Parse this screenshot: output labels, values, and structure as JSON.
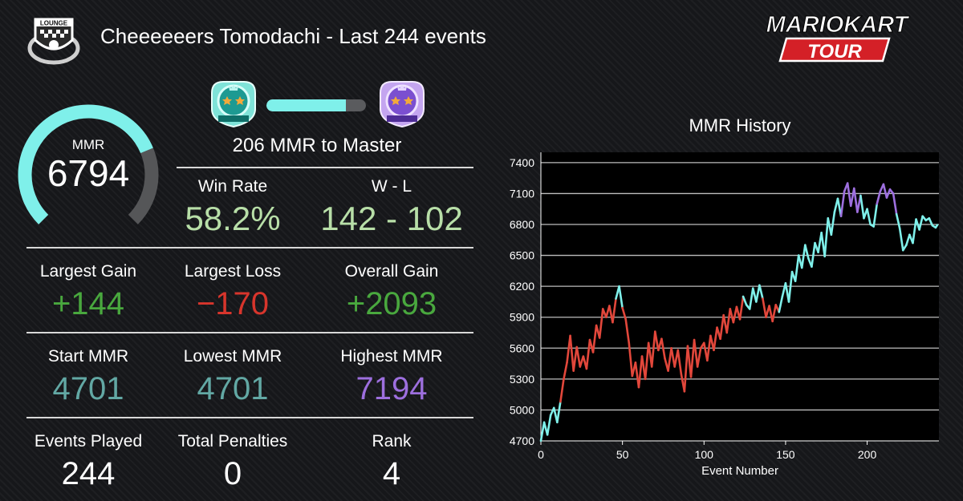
{
  "header": {
    "title": "Cheeeeeers Tomodachi - Last 244 events",
    "lounge_badge_text": "LOUNGE",
    "brand_top": "MARIOKART",
    "brand_bottom": "TOUR"
  },
  "mmr": {
    "label": "MMR",
    "value": "6794",
    "gauge_fraction": 0.75,
    "gauge_color": "#7ff0ea"
  },
  "rank_progress": {
    "current_rank_icon": "diamond-rank-icon",
    "next_rank_icon": "master-rank-icon",
    "fraction": 0.8,
    "text": "206 MMR to Master"
  },
  "stats": {
    "win_rate": {
      "label": "Win Rate",
      "value": "58.2%"
    },
    "wl": {
      "label": "W - L",
      "value": "142 - 102"
    },
    "largest_gain": {
      "label": "Largest Gain",
      "value": "+144"
    },
    "largest_loss": {
      "label": "Largest Loss",
      "value": "−170"
    },
    "overall_gain": {
      "label": "Overall Gain",
      "value": "+2093"
    },
    "start_mmr": {
      "label": "Start MMR",
      "value": "4701"
    },
    "lowest_mmr": {
      "label": "Lowest MMR",
      "value": "4701"
    },
    "highest_mmr": {
      "label": "Highest MMR",
      "value": "7194"
    },
    "events_played": {
      "label": "Events Played",
      "value": "244"
    },
    "penalties": {
      "label": "Total Penalties",
      "value": "0"
    },
    "rank": {
      "label": "Rank",
      "value": "4"
    }
  },
  "colors": {
    "green": "#49a83e",
    "red": "#d8352c",
    "teal": "#62a8a4",
    "purple": "#9d6fde",
    "light_green": "#b8dfa8",
    "line_red": "#e2473b",
    "line_teal": "#7ff0ea",
    "line_purple": "#9d6fde"
  },
  "chart_data": {
    "type": "line",
    "title": "MMR History",
    "xlabel": "Event Number",
    "ylabel": "",
    "xlim": [
      0,
      244
    ],
    "ylim": [
      4700,
      7500
    ],
    "xticks": [
      0,
      50,
      100,
      150,
      200
    ],
    "yticks": [
      4700,
      5000,
      5300,
      5600,
      5900,
      6200,
      6500,
      6800,
      7100,
      7400
    ],
    "grid": "horizontal",
    "color_bands": [
      {
        "min": 4700,
        "max": 5000,
        "color": "#7ff0ea"
      },
      {
        "min": 5000,
        "max": 6000,
        "color": "#e2473b"
      },
      {
        "min": 6000,
        "max": 7000,
        "color": "#7ff0ea"
      },
      {
        "min": 7000,
        "max": 7500,
        "color": "#9d6fde"
      }
    ],
    "series": [
      {
        "x": [
          0,
          2,
          4,
          6,
          8,
          10,
          12,
          14,
          16,
          18,
          20,
          22,
          24,
          26,
          28,
          30,
          32,
          34,
          36,
          38,
          40,
          42,
          44,
          46,
          48,
          50,
          52,
          54,
          56,
          58,
          60,
          62,
          64,
          66,
          68,
          70,
          72,
          74,
          76,
          78,
          80,
          82,
          84,
          86,
          88,
          90,
          92,
          94,
          96,
          98,
          100,
          102,
          104,
          106,
          108,
          110,
          112,
          114,
          116,
          118,
          120,
          122,
          124,
          126,
          128,
          130,
          132,
          134,
          136,
          138,
          140,
          142,
          144,
          146,
          148,
          150,
          152,
          154,
          156,
          158,
          160,
          162,
          164,
          166,
          168,
          170,
          172,
          174,
          176,
          178,
          180,
          182,
          184,
          186,
          188,
          190,
          192,
          194,
          196,
          198,
          200,
          202,
          204,
          206,
          208,
          210,
          212,
          214,
          216,
          218,
          220,
          222,
          224,
          226,
          228,
          230,
          232,
          234,
          236,
          238,
          240,
          242,
          243
        ],
        "y": [
          4701,
          4880,
          4760,
          4950,
          5020,
          4880,
          5080,
          5300,
          5460,
          5720,
          5380,
          5610,
          5420,
          5520,
          5400,
          5680,
          5560,
          5820,
          5700,
          5980,
          5900,
          6010,
          5850,
          6080,
          6200,
          5990,
          5880,
          5650,
          5330,
          5460,
          5220,
          5520,
          5300,
          5650,
          5420,
          5760,
          5580,
          5690,
          5500,
          5380,
          5600,
          5420,
          5580,
          5350,
          5180,
          5620,
          5320,
          5680,
          5420,
          5600,
          5650,
          5480,
          5720,
          5580,
          5800,
          5690,
          5920,
          5750,
          5980,
          5850,
          6000,
          5880,
          6100,
          6020,
          5980,
          6180,
          6050,
          6210,
          6080,
          5900,
          6010,
          5860,
          6020,
          5950,
          6100,
          6230,
          6050,
          6340,
          6250,
          6500,
          6380,
          6600,
          6470,
          6390,
          6620,
          6530,
          6720,
          6490,
          6860,
          6700,
          6920,
          7050,
          6880,
          7120,
          7200,
          6980,
          7150,
          6920,
          7080,
          6860,
          6950,
          6800,
          6780,
          7000,
          7120,
          7190,
          7060,
          7140,
          7100,
          6900,
          6760,
          6550,
          6600,
          6700,
          6620,
          6850,
          6750,
          6880,
          6840,
          6860,
          6790,
          6770,
          6794
        ]
      }
    ]
  }
}
